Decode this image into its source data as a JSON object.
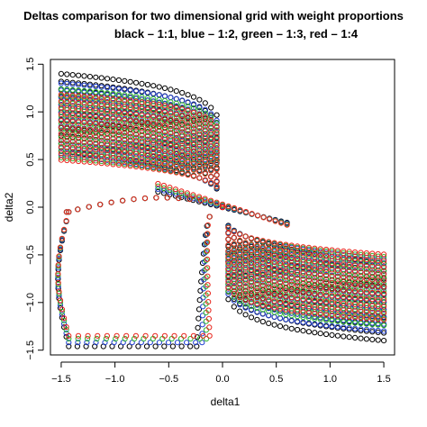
{
  "chart_data": {
    "type": "scatter",
    "title": "Deltas  comparison for two dimensional grid with weight proportions",
    "subtitle": "black – 1:1, blue – 1:2, green – 1:3, red – 1:4",
    "xlabel": "delta1",
    "ylabel": "delta2",
    "xlim": [
      -1.6,
      1.6
    ],
    "ylim": [
      -1.55,
      1.55
    ],
    "x_ticks": [
      -1.5,
      -1.0,
      -0.5,
      0.0,
      0.5,
      1.0,
      1.5
    ],
    "x_tick_labels": [
      "−1.5",
      "−1.0",
      "−0.5",
      "0.0",
      "0.5",
      "1.0",
      "1.5"
    ],
    "y_ticks": [
      -1.5,
      -1.0,
      -0.5,
      0.0,
      0.5,
      1.0,
      1.5
    ],
    "y_tick_labels": [
      "−1.5",
      "−1.0",
      "−0.5",
      "0.0",
      "0.5",
      "1.0",
      "1.5"
    ],
    "grid": false,
    "marker": "open-circle",
    "series": [
      {
        "color": "#000000",
        "ratio": 1,
        "corner_peak": 1.4,
        "loop_inner_x": 0.0,
        "loop_depth": 1.46
      },
      {
        "color": "#1f3fd0",
        "ratio": 2,
        "corner_peak": 1.3,
        "loop_inner_x": 0.05,
        "loop_depth": 1.42
      },
      {
        "color": "#2fb52f",
        "ratio": 3,
        "corner_peak": 1.24,
        "loop_inner_x": 0.09,
        "loop_depth": 1.38
      },
      {
        "color": "#e8241b",
        "ratio": 4,
        "corner_peak": 1.18,
        "loop_inner_x": 0.12,
        "loop_depth": 1.35
      }
    ]
  }
}
